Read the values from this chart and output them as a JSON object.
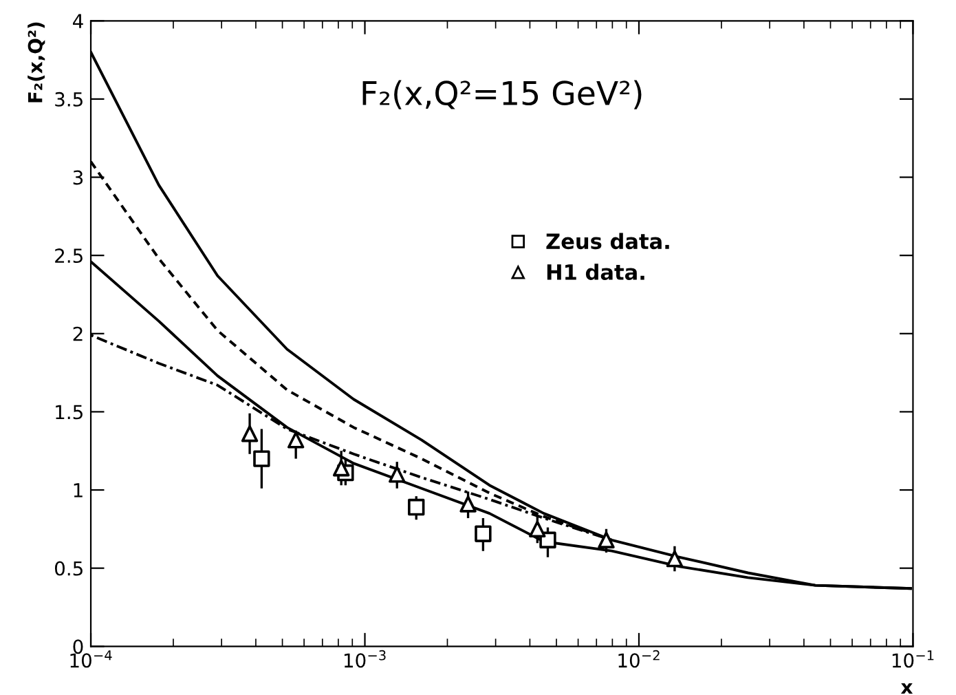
{
  "chart_data": {
    "type": "line",
    "title": "F₂(x,Q²=15 GeV²)",
    "xlabel": "x",
    "ylabel": "F₂(x,Q²)",
    "log": "x",
    "xlim": [
      0.0001,
      0.1
    ],
    "xticks": [
      {
        "value": 0.0001,
        "label": "10$^{−4}$"
      },
      {
        "value": 0.001,
        "label": "10$^{−3}$"
      },
      {
        "value": 0.01,
        "label": "10$^{−2}$"
      },
      {
        "value": 0.1,
        "label": "10$^{−1}$"
      }
    ],
    "ylim": [
      0,
      4
    ],
    "yticks": [
      0,
      0.5,
      1,
      1.5,
      2,
      2.5,
      3,
      3.5,
      4
    ],
    "grid": false,
    "legend": "center",
    "series": [
      {
        "line_style": "solid",
        "color": "#000000",
        "x": [
          0.0001,
          0.000177,
          0.00029,
          0.00052,
          0.00091,
          0.00161,
          0.00285,
          0.0045,
          0.00796,
          0.0141,
          0.025,
          0.044,
          0.098
        ],
        "values": [
          3.8,
          2.95,
          2.37,
          1.9,
          1.58,
          1.32,
          1.03,
          0.85,
          0.68,
          0.57,
          0.47,
          0.39,
          0.37
        ]
      },
      {
        "line_style": "dashed",
        "color": "#000000",
        "x": [
          0.0001,
          0.000177,
          0.00029,
          0.00052,
          0.00091,
          0.00161,
          0.00285,
          0.0045,
          0.00796
        ],
        "values": [
          3.1,
          2.48,
          2.02,
          1.64,
          1.4,
          1.2,
          0.98,
          0.83,
          0.68
        ]
      },
      {
        "line_style": "solid",
        "color": "#000000",
        "x": [
          0.0001,
          0.000177,
          0.00029,
          0.00052,
          0.00091,
          0.00161,
          0.00285,
          0.0045,
          0.00796,
          0.0141,
          0.025,
          0.044,
          0.098
        ],
        "values": [
          2.46,
          2.08,
          1.73,
          1.4,
          1.17,
          1.01,
          0.85,
          0.67,
          0.61,
          0.51,
          0.44,
          0.39,
          0.37
        ]
      },
      {
        "line_style": "dotted",
        "color": "#000000",
        "x": [
          0.0001,
          0.000177,
          0.00029,
          0.00052,
          0.00091,
          0.00161,
          0.00285,
          0.0045,
          0.00796
        ],
        "values": [
          1.99,
          1.81,
          1.67,
          1.39,
          1.23,
          1.08,
          0.94,
          0.82,
          0.68
        ]
      },
      {
        "type": "scatter",
        "name": "Zeus data.",
        "marker": "square",
        "color": "#000000",
        "x": [
          0.00042,
          0.00085,
          0.00154,
          0.0027,
          0.00465
        ],
        "values": [
          1.2,
          1.11,
          0.89,
          0.72,
          0.68
        ],
        "errors": [
          [
            1.01,
            1.39
          ],
          [
            1.03,
            1.2
          ],
          [
            0.81,
            0.96
          ],
          [
            0.61,
            0.82
          ],
          [
            0.57,
            0.76
          ]
        ]
      },
      {
        "type": "scatter",
        "name": "H1 data.",
        "marker": "triangle",
        "color": "#000000",
        "x": [
          0.00038,
          0.00056,
          0.00082,
          0.00131,
          0.00238,
          0.00426,
          0.0076,
          0.0135
        ],
        "values": [
          1.36,
          1.32,
          1.14,
          1.1,
          0.91,
          0.75,
          0.68,
          0.56
        ],
        "errors": [
          [
            1.23,
            1.49
          ],
          [
            1.2,
            1.38
          ],
          [
            1.03,
            1.25
          ],
          [
            1.01,
            1.18
          ],
          [
            0.82,
            0.99
          ],
          [
            0.66,
            0.83
          ],
          [
            0.6,
            0.75
          ],
          [
            0.48,
            0.64
          ]
        ]
      }
    ]
  }
}
